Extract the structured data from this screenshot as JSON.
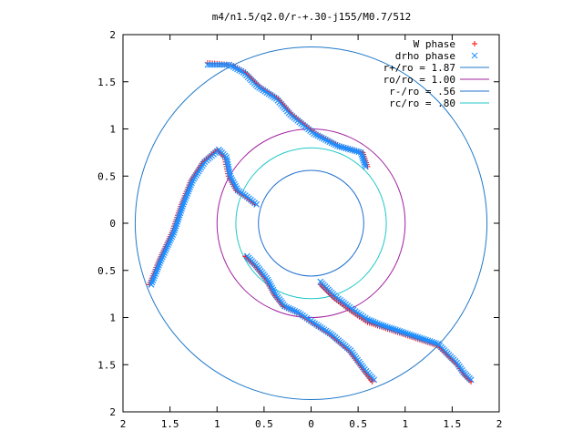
{
  "chart_data": {
    "type": "scatter",
    "title": "m4/n1.5/q2.0/r-+.30-j155/M0.7/512",
    "xlim": [
      -2,
      2
    ],
    "ylim": [
      -2,
      2
    ],
    "x_ticks": [
      -2,
      -1.5,
      -1,
      -0.5,
      0,
      0.5,
      1,
      1.5,
      2
    ],
    "y_ticks": [
      -2,
      -1.5,
      -1,
      -0.5,
      0,
      0.5,
      1,
      1.5,
      2
    ],
    "x_tick_labels": [
      "2",
      "1.5",
      "1",
      "0.5",
      "0",
      "0.5",
      "1",
      "1.5",
      "2"
    ],
    "y_tick_labels": [
      "2",
      "1.5",
      "1",
      "0.5",
      "0",
      "0.5",
      "1",
      "1.5",
      "2"
    ],
    "grid": false,
    "legend_position": "top-right",
    "legend": [
      {
        "label": "W phase",
        "marker": "plus",
        "color": "#ff0000"
      },
      {
        "label": "drho phase",
        "marker": "cross",
        "color": "#1e8fff"
      },
      {
        "label": "r+/ro = 1.87",
        "marker": "line",
        "color": "#1f78c8"
      },
      {
        "label": "ro/ro = 1.00",
        "marker": "line",
        "color": "#a020a0"
      },
      {
        "label": "r-/ro = .56",
        "marker": "line",
        "color": "#1f6fd0"
      },
      {
        "label": "rc/ro = .80",
        "marker": "line",
        "color": "#20c8c8"
      }
    ],
    "circles": [
      {
        "name": "r+/ro = 1.87",
        "r": 1.87,
        "color": "#1f78c8"
      },
      {
        "name": "ro/ro = 1.00",
        "r": 1.0,
        "color": "#a020a0"
      },
      {
        "name": "r-/ro = .56",
        "r": 0.56,
        "color": "#1f6fd0"
      },
      {
        "name": "rc/ro = .80",
        "r": 0.8,
        "color": "#20c8c8"
      }
    ],
    "series": [
      {
        "name": "W phase",
        "marker": "plus",
        "color": "#ff0000",
        "arms": [
          [
            [
              0.1,
              -0.65
            ],
            [
              0.25,
              -0.8
            ],
            [
              0.45,
              -0.95
            ],
            [
              0.6,
              -1.05
            ],
            [
              0.75,
              -1.1
            ],
            [
              0.9,
              -1.15
            ],
            [
              1.05,
              -1.2
            ],
            [
              1.2,
              -1.25
            ],
            [
              1.35,
              -1.3
            ],
            [
              1.45,
              -1.4
            ],
            [
              1.55,
              -1.5
            ],
            [
              1.62,
              -1.6
            ],
            [
              1.7,
              -1.68
            ]
          ],
          [
            [
              -1.72,
              -0.65
            ],
            [
              -1.62,
              -0.4
            ],
            [
              -1.48,
              -0.1
            ],
            [
              -1.38,
              0.2
            ],
            [
              -1.28,
              0.45
            ],
            [
              -1.15,
              0.65
            ],
            [
              -1.0,
              0.78
            ],
            [
              -0.92,
              0.7
            ],
            [
              -0.88,
              0.5
            ],
            [
              -0.8,
              0.35
            ],
            [
              -0.7,
              0.28
            ],
            [
              -0.6,
              0.2
            ]
          ],
          [
            [
              0.6,
              0.6
            ],
            [
              0.55,
              0.75
            ],
            [
              0.3,
              0.82
            ],
            [
              0.05,
              0.95
            ],
            [
              -0.2,
              1.15
            ],
            [
              -0.35,
              1.32
            ],
            [
              -0.55,
              1.45
            ],
            [
              -0.7,
              1.6
            ],
            [
              -0.85,
              1.68
            ],
            [
              -1.1,
              1.7
            ]
          ],
          [
            [
              -0.7,
              -0.35
            ],
            [
              -0.6,
              -0.45
            ],
            [
              -0.48,
              -0.6
            ],
            [
              -0.4,
              -0.75
            ],
            [
              -0.3,
              -0.88
            ],
            [
              -0.15,
              -0.95
            ],
            [
              0.0,
              -1.05
            ],
            [
              0.2,
              -1.18
            ],
            [
              0.4,
              -1.35
            ],
            [
              0.55,
              -1.55
            ],
            [
              0.65,
              -1.68
            ]
          ]
        ]
      },
      {
        "name": "drho phase",
        "marker": "cross",
        "color": "#1e8fff",
        "arms": [
          [
            [
              0.1,
              -0.62
            ],
            [
              0.25,
              -0.77
            ],
            [
              0.45,
              -0.92
            ],
            [
              0.6,
              -1.02
            ],
            [
              0.75,
              -1.08
            ],
            [
              0.9,
              -1.13
            ],
            [
              1.05,
              -1.18
            ],
            [
              1.2,
              -1.23
            ],
            [
              1.35,
              -1.28
            ],
            [
              1.45,
              -1.38
            ],
            [
              1.55,
              -1.48
            ],
            [
              1.62,
              -1.58
            ],
            [
              1.7,
              -1.66
            ]
          ],
          [
            [
              -1.7,
              -0.65
            ],
            [
              -1.6,
              -0.4
            ],
            [
              -1.46,
              -0.1
            ],
            [
              -1.36,
              0.2
            ],
            [
              -1.26,
              0.45
            ],
            [
              -1.13,
              0.65
            ],
            [
              -0.98,
              0.78
            ],
            [
              -0.9,
              0.7
            ],
            [
              -0.86,
              0.5
            ],
            [
              -0.78,
              0.35
            ],
            [
              -0.68,
              0.28
            ],
            [
              -0.58,
              0.2
            ]
          ],
          [
            [
              0.58,
              0.6
            ],
            [
              0.53,
              0.75
            ],
            [
              0.28,
              0.82
            ],
            [
              0.03,
              0.95
            ],
            [
              -0.22,
              1.15
            ],
            [
              -0.37,
              1.32
            ],
            [
              -0.57,
              1.45
            ],
            [
              -0.72,
              1.6
            ],
            [
              -0.87,
              1.68
            ],
            [
              -1.1,
              1.68
            ]
          ],
          [
            [
              -0.68,
              -0.35
            ],
            [
              -0.58,
              -0.45
            ],
            [
              -0.46,
              -0.6
            ],
            [
              -0.38,
              -0.75
            ],
            [
              -0.28,
              -0.88
            ],
            [
              -0.13,
              -0.95
            ],
            [
              0.02,
              -1.05
            ],
            [
              0.22,
              -1.18
            ],
            [
              0.42,
              -1.35
            ],
            [
              0.57,
              -1.55
            ],
            [
              0.67,
              -1.66
            ]
          ]
        ]
      }
    ]
  }
}
